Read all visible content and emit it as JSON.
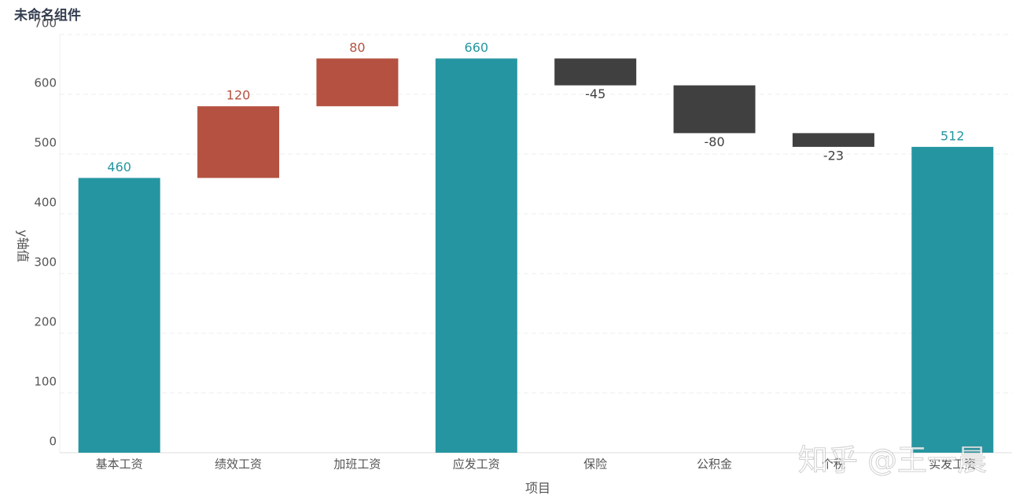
{
  "chart_data": {
    "type": "waterfall",
    "title": "未命名组件",
    "categories": [
      "基本工资",
      "绩效工资",
      "加班工资",
      "应发工资",
      "保险",
      "公积金",
      "个税",
      "实发工资"
    ],
    "values": [
      460,
      120,
      80,
      660,
      -45,
      -80,
      -23,
      512
    ],
    "total_color": "#2596a1",
    "increase_color": "#b45140",
    "decrease_color": "#404040",
    "ylim": [
      0,
      700
    ],
    "yticks": [
      0,
      100,
      200,
      300,
      400,
      500,
      600,
      700
    ],
    "grid": true,
    "x_label": "项目",
    "y_label": "y轴值",
    "watermark": "知乎 @王一晨"
  }
}
